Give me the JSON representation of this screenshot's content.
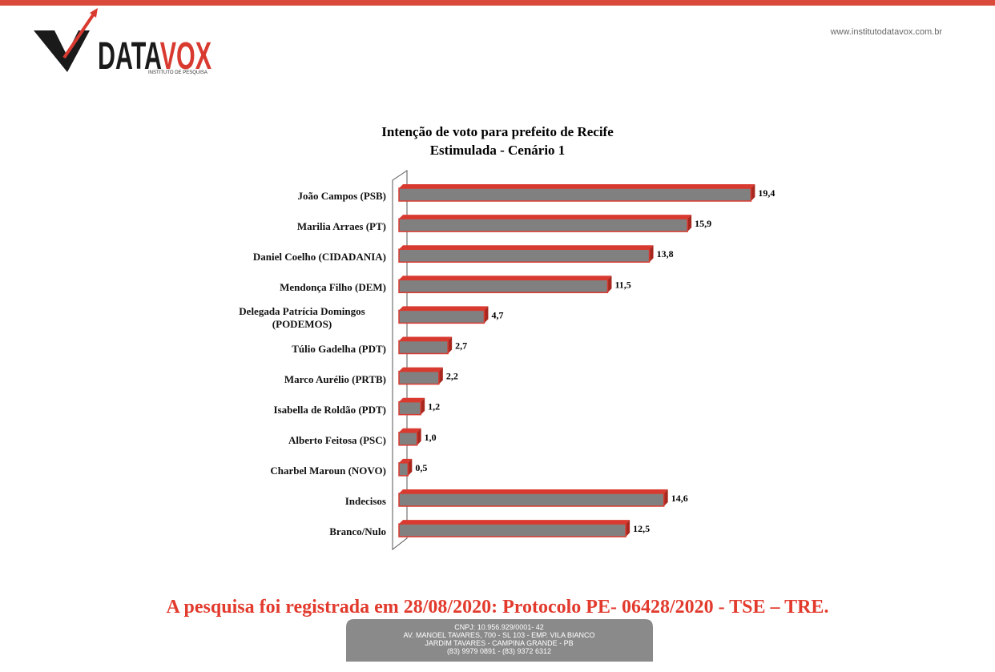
{
  "header": {
    "logo_dark": "DATA",
    "logo_red": "VOX",
    "tagline": "INSTITUTO DE PESQUISA",
    "url": "www.institutodatavox.com.br"
  },
  "chart_data": {
    "type": "bar",
    "orientation": "horizontal",
    "title": [
      "Intenção de voto para prefeito de Recife",
      "Estimulada - Cenário 1"
    ],
    "categories": [
      "João Campos (PSB)",
      "Marilia Arraes (PT)",
      "Daniel Coelho (CIDADANIA)",
      "Mendonça Filho (DEM)",
      "Delegada Patrícia Domingos (PODEMOS)",
      "Túlio Gadelha (PDT)",
      "Marco Aurélio (PRTB)",
      "Isabella de Roldão (PDT)",
      "Alberto  Feitosa (PSC)",
      "Charbel Maroun (NOVO)",
      "Indecisos",
      "Branco/Nulo"
    ],
    "values": [
      19.4,
      15.9,
      13.8,
      11.5,
      4.7,
      2.7,
      2.2,
      1.2,
      1.0,
      0.5,
      14.6,
      12.5
    ],
    "value_labels": [
      "19,4",
      "15,9",
      "13,8",
      "11,5",
      "4,7",
      "2,7",
      "2,2",
      "1,2",
      "1,0",
      "0,5",
      "14,6",
      "12,5"
    ],
    "color": "#808080",
    "edge_color": "#d93a30"
  },
  "footer": {
    "notice": "A pesquisa foi registrada em 28/08/2020: Protocolo PE- 06428/2020 - TSE – TRE.",
    "address": [
      "CNPJ: 10.956.929/0001- 42",
      "AV. MANOEL TAVARES, 700 - SL 103 - EMP. VILA BIANCO",
      "JARDIM TAVARES - CAMPINA GRANDE - PB",
      "(83) 9979 0891 - (83) 9372 6312"
    ]
  }
}
